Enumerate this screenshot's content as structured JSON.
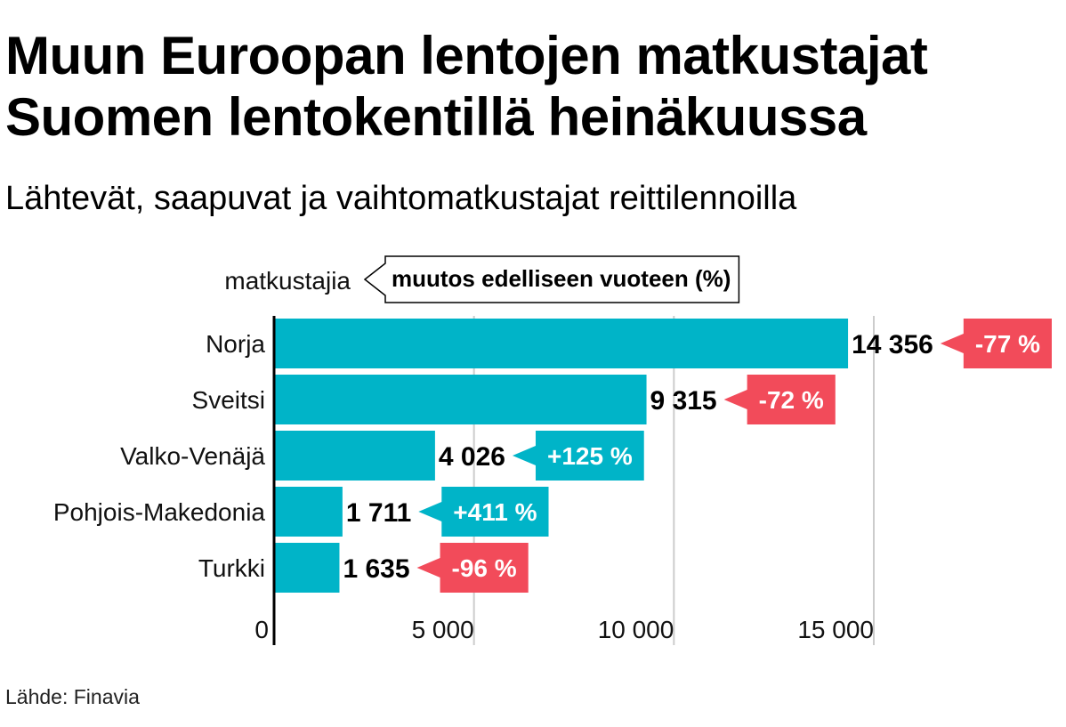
{
  "title_line1": "Muun Euroopan lentojen matkustajat",
  "title_line2": "Suomen lentokentillä heinäkuussa",
  "subtitle": "Lähtevät, saapuvat ja vaihtomatkustajat reittilennoilla",
  "source": "Lähde: Finavia",
  "colors": {
    "bar": "#00b4c8",
    "increase": "#00b4c8",
    "decrease": "#f24b5a",
    "grid": "#cccccc",
    "axis": "#000000"
  },
  "chart_data": {
    "type": "bar",
    "orientation": "horizontal",
    "unit_label": "matkustajia",
    "change_legend": "muutos edelliseen vuoteen (%)",
    "categories": [
      "Norja",
      "Sveitsi",
      "Valko-Venäjä",
      "Pohjois-Makedonia",
      "Turkki"
    ],
    "values": [
      14356,
      9315,
      4026,
      1711,
      1635
    ],
    "value_labels": [
      "14 356",
      "9 315",
      "4 026",
      "1 711",
      "1 635"
    ],
    "changes": [
      -77,
      -72,
      125,
      411,
      -96
    ],
    "change_labels": [
      "-77 %",
      "-72 %",
      "+125 %",
      "+411 %",
      "-96 %"
    ],
    "xlim": [
      0,
      15000
    ],
    "xticks": [
      0,
      5000,
      10000,
      15000
    ],
    "xtick_labels": [
      "0",
      "5 000",
      "10 000",
      "15 000"
    ],
    "grid": true
  }
}
